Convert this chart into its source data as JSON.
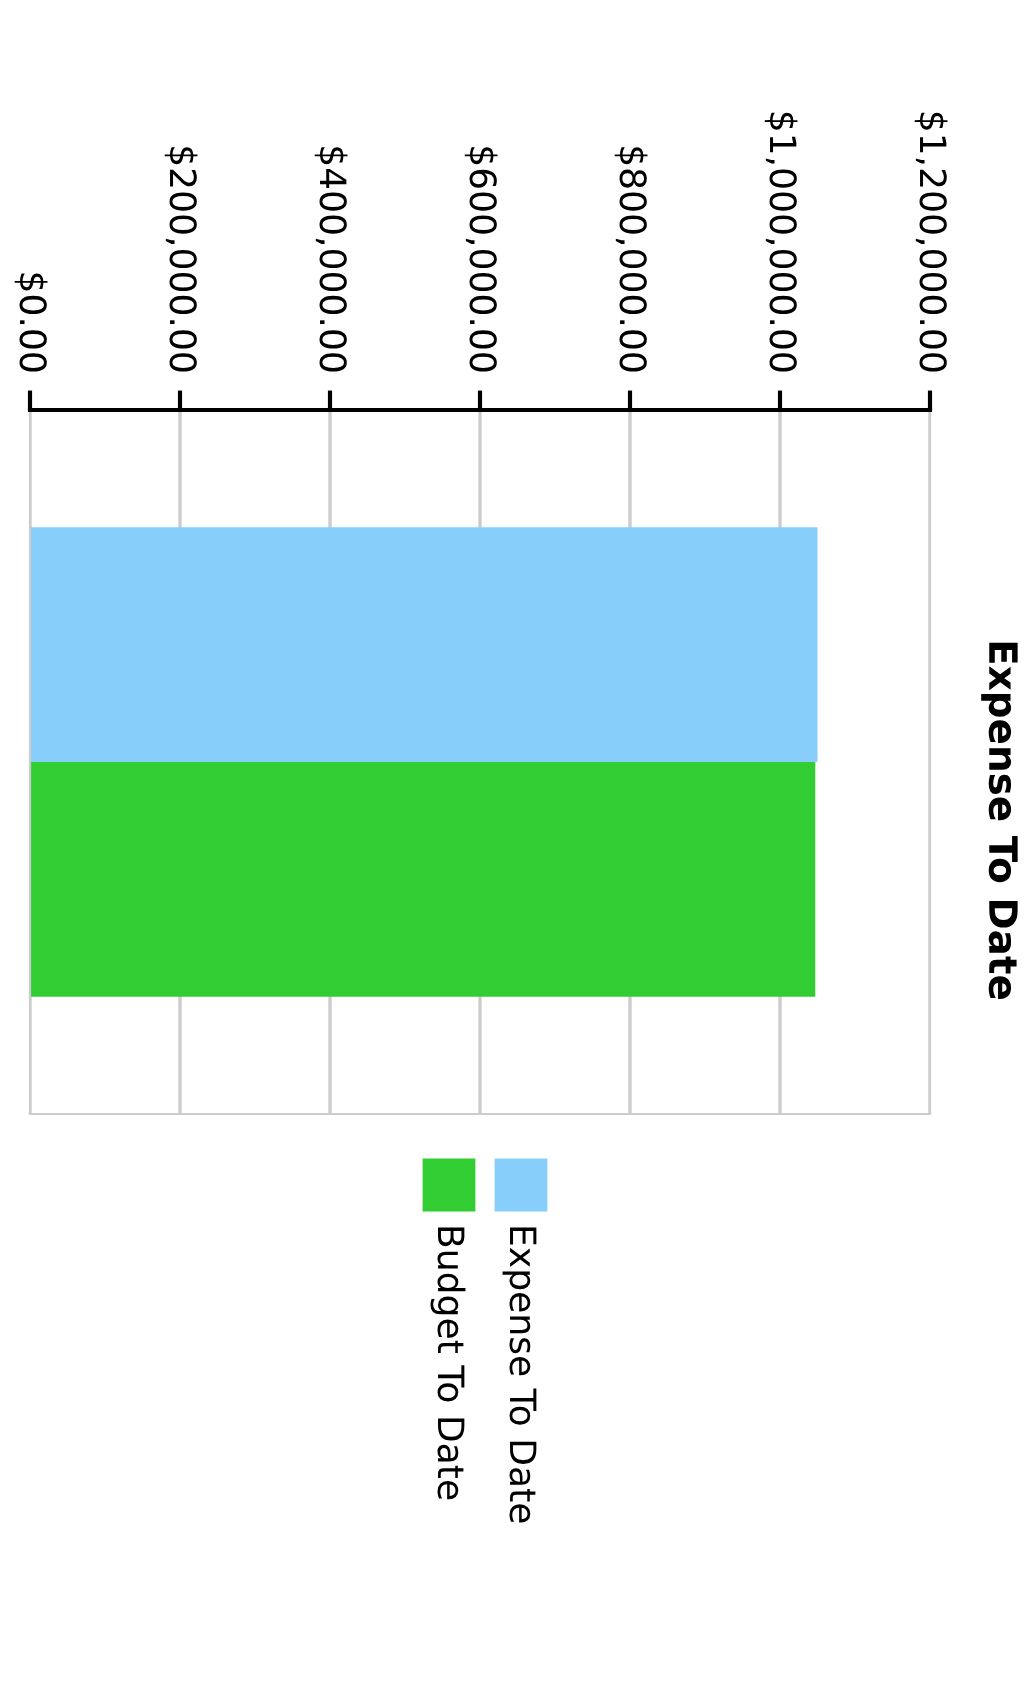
{
  "chart_data": {
    "type": "bar",
    "orientation": "horizontal",
    "title": "Expense To Date",
    "categories": [
      null
    ],
    "series": [
      {
        "name": "Expense To Date",
        "color": "#87cefa",
        "values": [
          1050000
        ]
      },
      {
        "name": "Budget To Date",
        "color": "#32cd32",
        "values": [
          1047000
        ]
      }
    ],
    "xlim": [
      0,
      1200000
    ],
    "xticks": [
      {
        "value": 0,
        "label": "$0.00"
      },
      {
        "value": 200000,
        "label": "$200,000.00"
      },
      {
        "value": 400000,
        "label": "$400,000.00"
      },
      {
        "value": 600000,
        "label": "$600,000.00"
      },
      {
        "value": 800000,
        "label": "$800,000.00"
      },
      {
        "value": 1000000,
        "label": "$1,000,000.00"
      },
      {
        "value": 1200000,
        "label": "$1,200,000.00"
      }
    ],
    "grid": "x",
    "legend": "bottom"
  }
}
